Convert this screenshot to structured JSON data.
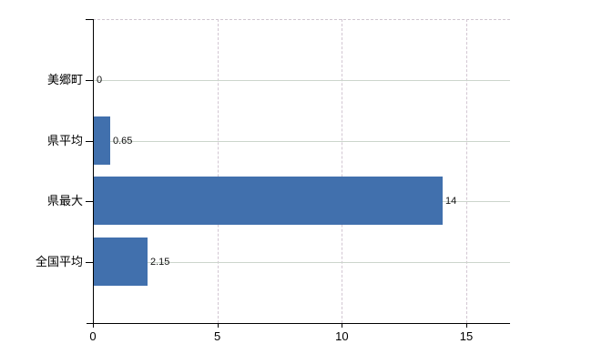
{
  "chart_data": {
    "type": "bar",
    "orientation": "horizontal",
    "title": "",
    "xlabel": "",
    "ylabel": "",
    "categories": [
      "美郷町",
      "県平均",
      "県最大",
      "全国平均"
    ],
    "values": [
      0,
      0.65,
      14,
      2.15
    ],
    "value_labels": [
      "0",
      "0.65",
      "14",
      "2.15"
    ],
    "x_ticks": [
      0,
      5,
      10,
      15
    ],
    "x_tick_labels": [
      "0",
      "5",
      "10",
      "15"
    ],
    "xlim": [
      0,
      16.8
    ],
    "grid": true,
    "legend": "none",
    "colors": {
      "bar": "#4170ad",
      "horizontal_gridline": "#ccd5cc",
      "vertical_gridline": "#d2c6d2",
      "axis": "#000000",
      "text": "#000000",
      "background": "#ffffff"
    }
  }
}
